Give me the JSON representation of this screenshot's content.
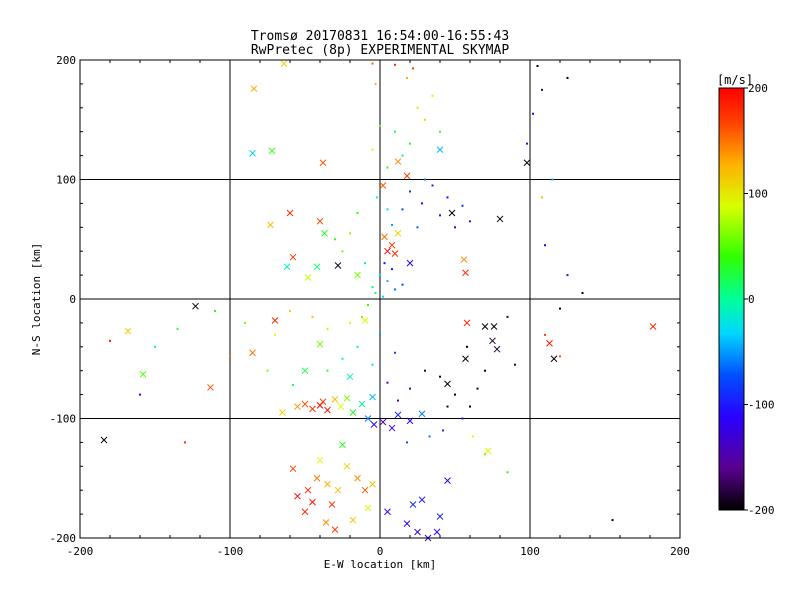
{
  "chart_data": {
    "type": "scatter",
    "title": "Tromsø 20170831 16:54:00-16:55:43",
    "subtitle": "RwPretec (8p) EXPERIMENTAL SKYMAP",
    "xlabel": "E-W location [km]",
    "ylabel": "N-S location [km]",
    "xlim": [
      -200,
      200
    ],
    "ylim": [
      -200,
      200
    ],
    "xticks": [
      -200,
      -100,
      0,
      100,
      200
    ],
    "yticks": [
      -200,
      -100,
      0,
      100,
      200
    ],
    "xtick_labels": [
      "-200",
      "-100",
      "0",
      "100",
      "200"
    ],
    "ytick_labels": [
      "-200",
      "-100",
      "0",
      "100",
      "200"
    ],
    "grid": true,
    "grid_lines_x": [
      -100,
      0,
      100
    ],
    "grid_lines_y": [
      -100,
      0,
      100
    ],
    "colorbar": {
      "label": "[m/s]",
      "range": [
        -200,
        200
      ],
      "ticks": [
        200,
        100,
        0,
        -100,
        -200
      ],
      "tick_labels": [
        "200",
        "100",
        "0",
        "-100",
        "-200"
      ],
      "colormap": "black-purple-blue-cyan-green-yellow-orange-red",
      "placement": "right"
    },
    "series": [
      {
        "marker": "x",
        "points": [
          [
            -84,
            176,
            130
          ],
          [
            -64,
            197,
            110
          ],
          [
            -85,
            122,
            -30
          ],
          [
            -72,
            124,
            40
          ],
          [
            -38,
            114,
            160
          ],
          [
            -60,
            72,
            180
          ],
          [
            -40,
            65,
            170
          ],
          [
            -73,
            62,
            120
          ],
          [
            -37,
            55,
            30
          ],
          [
            -58,
            35,
            170
          ],
          [
            -62,
            27,
            -10
          ],
          [
            -42,
            27,
            10
          ],
          [
            -28,
            28,
            -190
          ],
          [
            -15,
            20,
            60
          ],
          [
            -48,
            18,
            80
          ],
          [
            -123,
            -6,
            -200
          ],
          [
            -184,
            -118,
            -200
          ],
          [
            -168,
            -27,
            110
          ],
          [
            -158,
            -63,
            50
          ],
          [
            -113,
            -74,
            160
          ],
          [
            -70,
            -18,
            180
          ],
          [
            -85,
            -45,
            150
          ],
          [
            -10,
            -18,
            90
          ],
          [
            -40,
            -38,
            60
          ],
          [
            -50,
            -60,
            20
          ],
          [
            -20,
            -65,
            -10
          ],
          [
            -5,
            -82,
            -40
          ],
          [
            -65,
            -95,
            110
          ],
          [
            -55,
            -90,
            140
          ],
          [
            -50,
            -88,
            160
          ],
          [
            -45,
            -92,
            180
          ],
          [
            -40,
            -89,
            200
          ],
          [
            -38,
            -86,
            170
          ],
          [
            -35,
            -93,
            190
          ],
          [
            -30,
            -84,
            120
          ],
          [
            -26,
            -90,
            90
          ],
          [
            -22,
            -83,
            60
          ],
          [
            -18,
            -95,
            30
          ],
          [
            -12,
            -88,
            0
          ],
          [
            -8,
            -100,
            -60
          ],
          [
            -4,
            -105,
            -110
          ],
          [
            2,
            -103,
            -150
          ],
          [
            8,
            -108,
            -130
          ],
          [
            12,
            -97,
            -90
          ],
          [
            20,
            -102,
            -110
          ],
          [
            28,
            -96,
            -60
          ],
          [
            -25,
            -122,
            30
          ],
          [
            -40,
            -135,
            90
          ],
          [
            -35,
            -155,
            130
          ],
          [
            -58,
            -142,
            170
          ],
          [
            -48,
            -160,
            180
          ],
          [
            -55,
            -165,
            200
          ],
          [
            -45,
            -170,
            190
          ],
          [
            -42,
            -150,
            150
          ],
          [
            -32,
            -172,
            170
          ],
          [
            -28,
            -160,
            120
          ],
          [
            -22,
            -140,
            110
          ],
          [
            -15,
            -150,
            140
          ],
          [
            -10,
            -160,
            160
          ],
          [
            -5,
            -155,
            120
          ],
          [
            -50,
            -178,
            180
          ],
          [
            -36,
            -187,
            140
          ],
          [
            -30,
            -193,
            170
          ],
          [
            -18,
            -185,
            120
          ],
          [
            -8,
            -175,
            90
          ],
          [
            5,
            -178,
            -110
          ],
          [
            22,
            -172,
            -90
          ],
          [
            28,
            -168,
            -100
          ],
          [
            18,
            -188,
            -110
          ],
          [
            25,
            -195,
            -120
          ],
          [
            32,
            -200,
            -130
          ],
          [
            38,
            -195,
            -110
          ],
          [
            40,
            -182,
            -90
          ],
          [
            45,
            -152,
            -120
          ],
          [
            72,
            -127,
            90
          ],
          [
            5,
            40,
            200
          ],
          [
            10,
            38,
            180
          ],
          [
            8,
            45,
            170
          ],
          [
            3,
            52,
            150
          ],
          [
            12,
            55,
            110
          ],
          [
            2,
            95,
            160
          ],
          [
            18,
            103,
            170
          ],
          [
            12,
            115,
            140
          ],
          [
            40,
            125,
            -40
          ],
          [
            48,
            72,
            -200
          ],
          [
            80,
            67,
            -200
          ],
          [
            98,
            114,
            -200
          ],
          [
            70,
            -23,
            -200
          ],
          [
            76,
            -23,
            -200
          ],
          [
            75,
            -35,
            -190
          ],
          [
            78,
            -42,
            -190
          ],
          [
            113,
            -37,
            190
          ],
          [
            116,
            -50,
            -200
          ],
          [
            57,
            -50,
            -200
          ],
          [
            45,
            -71,
            -200
          ],
          [
            58,
            -20,
            180
          ],
          [
            182,
            -23,
            180
          ],
          [
            56,
            33,
            140
          ],
          [
            57,
            22,
            180
          ],
          [
            20,
            30,
            -120
          ]
        ]
      },
      {
        "marker": "dot",
        "points": [
          [
            -5,
            197,
            160
          ],
          [
            10,
            196,
            180
          ],
          [
            22,
            193,
            170
          ],
          [
            -3,
            180,
            120
          ],
          [
            18,
            185,
            130
          ],
          [
            25,
            160,
            100
          ],
          [
            35,
            170,
            80
          ],
          [
            30,
            150,
            70
          ],
          [
            40,
            140,
            40
          ],
          [
            20,
            130,
            30
          ],
          [
            10,
            140,
            20
          ],
          [
            5,
            110,
            40
          ],
          [
            0,
            145,
            60
          ],
          [
            -5,
            125,
            80
          ],
          [
            15,
            120,
            -10
          ],
          [
            30,
            100,
            -60
          ],
          [
            20,
            90,
            -90
          ],
          [
            35,
            95,
            -100
          ],
          [
            28,
            80,
            -110
          ],
          [
            45,
            85,
            -120
          ],
          [
            40,
            70,
            -130
          ],
          [
            50,
            60,
            -110
          ],
          [
            55,
            78,
            -90
          ],
          [
            60,
            65,
            -100
          ],
          [
            15,
            75,
            -80
          ],
          [
            25,
            60,
            -70
          ],
          [
            8,
            62,
            -50
          ],
          [
            5,
            75,
            -30
          ],
          [
            -2,
            85,
            10
          ],
          [
            -15,
            72,
            40
          ],
          [
            -20,
            55,
            70
          ],
          [
            -30,
            50,
            30
          ],
          [
            -25,
            40,
            60
          ],
          [
            -10,
            30,
            10
          ],
          [
            0,
            20,
            -20
          ],
          [
            5,
            15,
            -40
          ],
          [
            -5,
            10,
            0
          ],
          [
            -3,
            5,
            20
          ],
          [
            2,
            2,
            -30
          ],
          [
            10,
            8,
            -60
          ],
          [
            15,
            12,
            -80
          ],
          [
            8,
            25,
            -100
          ],
          [
            3,
            30,
            -110
          ],
          [
            -8,
            -5,
            40
          ],
          [
            -12,
            -15,
            60
          ],
          [
            -20,
            -20,
            90
          ],
          [
            -35,
            -25,
            100
          ],
          [
            -45,
            -15,
            120
          ],
          [
            -60,
            -10,
            110
          ],
          [
            -70,
            -30,
            90
          ],
          [
            -90,
            -20,
            60
          ],
          [
            -110,
            -10,
            40
          ],
          [
            -135,
            -25,
            30
          ],
          [
            -150,
            -40,
            10
          ],
          [
            -160,
            -80,
            -110
          ],
          [
            -180,
            -35,
            190
          ],
          [
            -130,
            -120,
            180
          ],
          [
            -100,
            -48,
            150
          ],
          [
            -75,
            -60,
            60
          ],
          [
            -58,
            -72,
            20
          ],
          [
            -35,
            -60,
            30
          ],
          [
            -25,
            -50,
            10
          ],
          [
            -15,
            -40,
            0
          ],
          [
            -5,
            -55,
            -20
          ],
          [
            0,
            -30,
            -50
          ],
          [
            10,
            -45,
            -80
          ],
          [
            5,
            -70,
            -100
          ],
          [
            12,
            -85,
            -130
          ],
          [
            20,
            -75,
            -160
          ],
          [
            30,
            -60,
            -180
          ],
          [
            40,
            -65,
            -200
          ],
          [
            50,
            -80,
            -200
          ],
          [
            60,
            -90,
            -200
          ],
          [
            45,
            -90,
            -190
          ],
          [
            65,
            -75,
            -190
          ],
          [
            70,
            -60,
            -200
          ],
          [
            58,
            -40,
            -200
          ],
          [
            85,
            -15,
            -180
          ],
          [
            90,
            -55,
            -180
          ],
          [
            110,
            -30,
            170
          ],
          [
            120,
            -48,
            160
          ],
          [
            42,
            -110,
            -90
          ],
          [
            33,
            -115,
            -60
          ],
          [
            18,
            -120,
            -70
          ],
          [
            55,
            -100,
            -100
          ],
          [
            62,
            -115,
            90
          ],
          [
            70,
            -130,
            60
          ],
          [
            85,
            -145,
            40
          ],
          [
            110,
            45,
            -110
          ],
          [
            125,
            20,
            -130
          ],
          [
            135,
            5,
            -200
          ],
          [
            120,
            -8,
            -200
          ],
          [
            155,
            -185,
            -200
          ],
          [
            105,
            195,
            -200
          ],
          [
            108,
            175,
            -180
          ],
          [
            125,
            185,
            -200
          ],
          [
            102,
            155,
            -110
          ],
          [
            98,
            130,
            -120
          ],
          [
            115,
            100,
            -40
          ],
          [
            108,
            85,
            120
          ]
        ]
      }
    ]
  }
}
